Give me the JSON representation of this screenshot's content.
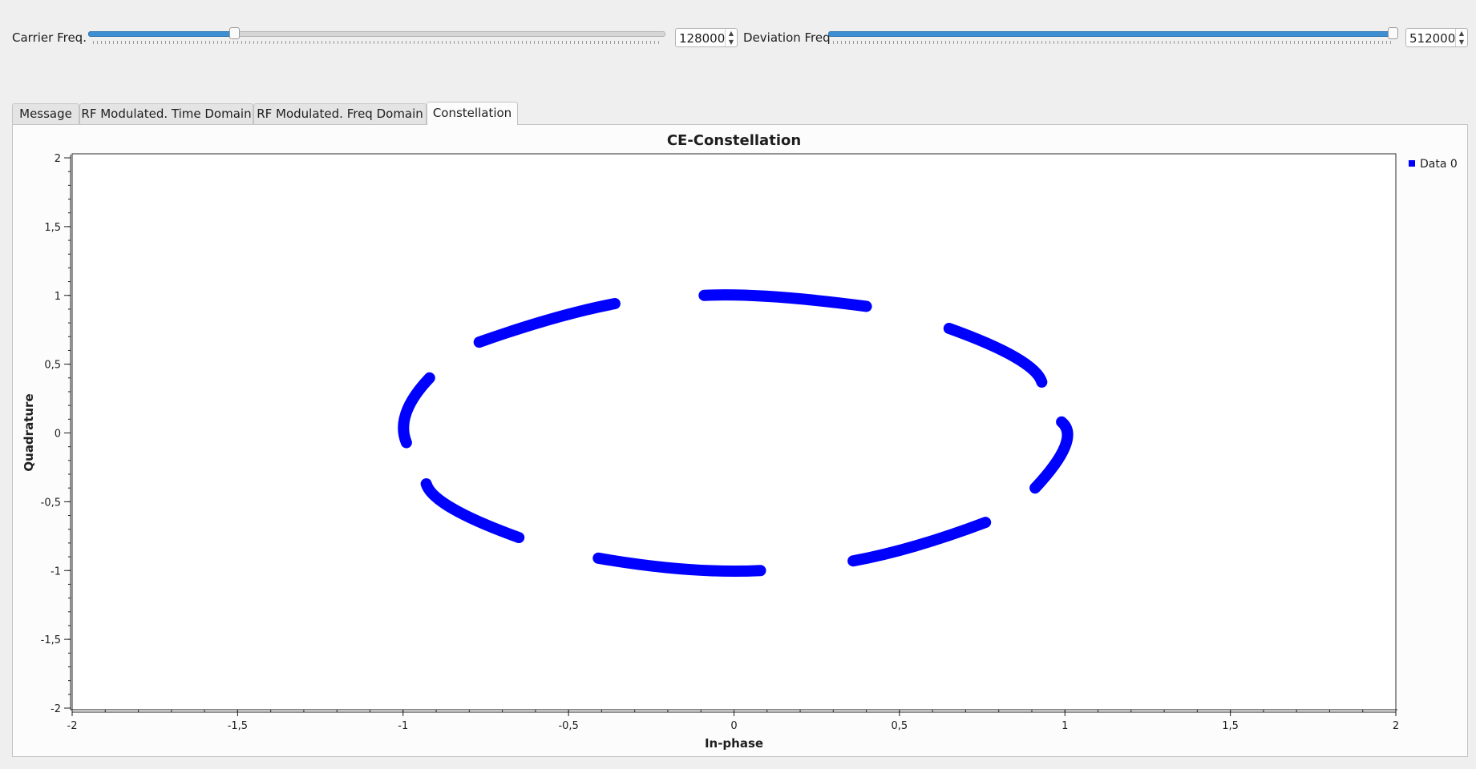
{
  "controls": {
    "carrier": {
      "label": "Carrier Freq.",
      "value": "128000",
      "fraction": 0.253
    },
    "deviation": {
      "label": "Deviation Freq",
      "value": "512000",
      "fraction": 1.0
    }
  },
  "tabs": [
    {
      "label": "Message",
      "active": false
    },
    {
      "label": "RF Modulated. Time Domain",
      "active": false
    },
    {
      "label": "RF Modulated. Freq Domain",
      "active": false
    },
    {
      "label": "Constellation",
      "active": true
    }
  ],
  "chart_data": {
    "type": "scatter",
    "title": "CE-Constellation",
    "xlabel": "In-phase",
    "ylabel": "Quadrature",
    "xlim": [
      -2,
      2
    ],
    "ylim": [
      -2,
      2
    ],
    "xticks": [
      -2,
      -1.5,
      -1,
      -0.5,
      0,
      0.5,
      1,
      1.5,
      2
    ],
    "yticks": [
      -2,
      -1.5,
      -1,
      -0.5,
      0,
      0.5,
      1,
      1.5,
      2
    ],
    "xtick_labels": [
      "-2",
      "-1,5",
      "-1",
      "-0,5",
      "0",
      "0,5",
      "1",
      "1,5",
      "2"
    ],
    "ytick_labels": [
      "-2",
      "-1,5",
      "-1",
      "-0,5",
      "0",
      "0,5",
      "1",
      "1,5",
      "2"
    ],
    "legend": {
      "position": "top-right",
      "entries": [
        "Data 0"
      ]
    },
    "series_color": "#0000ff",
    "series": [
      {
        "name": "Data 0",
        "segments": [
          {
            "x": [
              -0.09,
              0.12,
              0.4
            ],
            "y": [
              1.0,
              0.99,
              0.92
            ]
          },
          {
            "x": [
              0.65,
              0.85,
              0.93
            ],
            "y": [
              0.76,
              0.55,
              0.37
            ]
          },
          {
            "x": [
              0.99,
              1.0,
              0.91
            ],
            "y": [
              0.08,
              -0.1,
              -0.4
            ]
          },
          {
            "x": [
              0.76,
              0.55,
              0.36
            ],
            "y": [
              -0.65,
              -0.82,
              -0.93
            ]
          },
          {
            "x": [
              0.08,
              -0.15,
              -0.41
            ],
            "y": [
              -1.0,
              -0.99,
              -0.91
            ]
          },
          {
            "x": [
              -0.65,
              -0.85,
              -0.93
            ],
            "y": [
              -0.76,
              -0.55,
              -0.37
            ]
          },
          {
            "x": [
              -0.92,
              -0.99,
              -0.99
            ],
            "y": [
              0.4,
              0.15,
              -0.07
            ]
          },
          {
            "x": [
              -0.77,
              -0.55,
              -0.36
            ],
            "y": [
              0.66,
              0.83,
              0.94
            ]
          }
        ]
      }
    ]
  }
}
